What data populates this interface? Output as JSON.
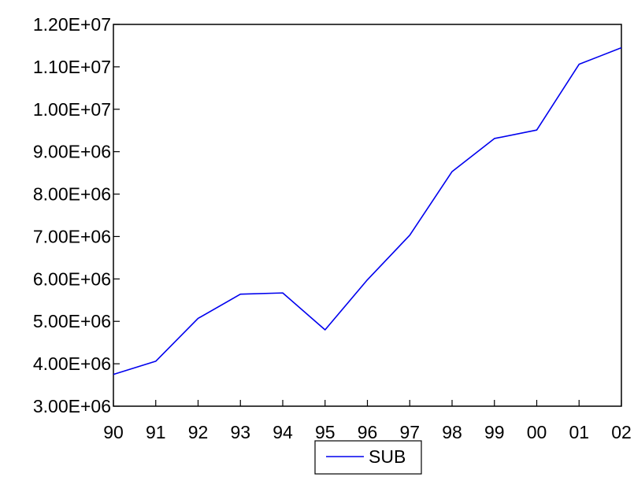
{
  "chart_data": {
    "type": "line",
    "x": [
      "90",
      "91",
      "92",
      "93",
      "94",
      "95",
      "96",
      "97",
      "98",
      "99",
      "00",
      "01",
      "02"
    ],
    "series": [
      {
        "name": "SUB",
        "color": "#0000ee",
        "values": [
          3750000,
          4060000,
          5070000,
          5640000,
          5670000,
          4800000,
          5980000,
          7030000,
          8530000,
          9310000,
          9510000,
          11060000,
          11450000
        ]
      }
    ],
    "ylim": [
      3000000,
      12000000
    ],
    "yticks": [
      3000000,
      4000000,
      5000000,
      6000000,
      7000000,
      8000000,
      9000000,
      10000000,
      11000000,
      12000000
    ],
    "ytick_labels": [
      "3.00E+06",
      "4.00E+06",
      "5.00E+06",
      "6.00E+06",
      "7.00E+06",
      "8.00E+06",
      "9.00E+06",
      "1.00E+07",
      "1.10E+07",
      "1.20E+07"
    ],
    "title": "",
    "xlabel": "",
    "ylabel": "",
    "grid": false,
    "legend_position": "bottom-center"
  }
}
